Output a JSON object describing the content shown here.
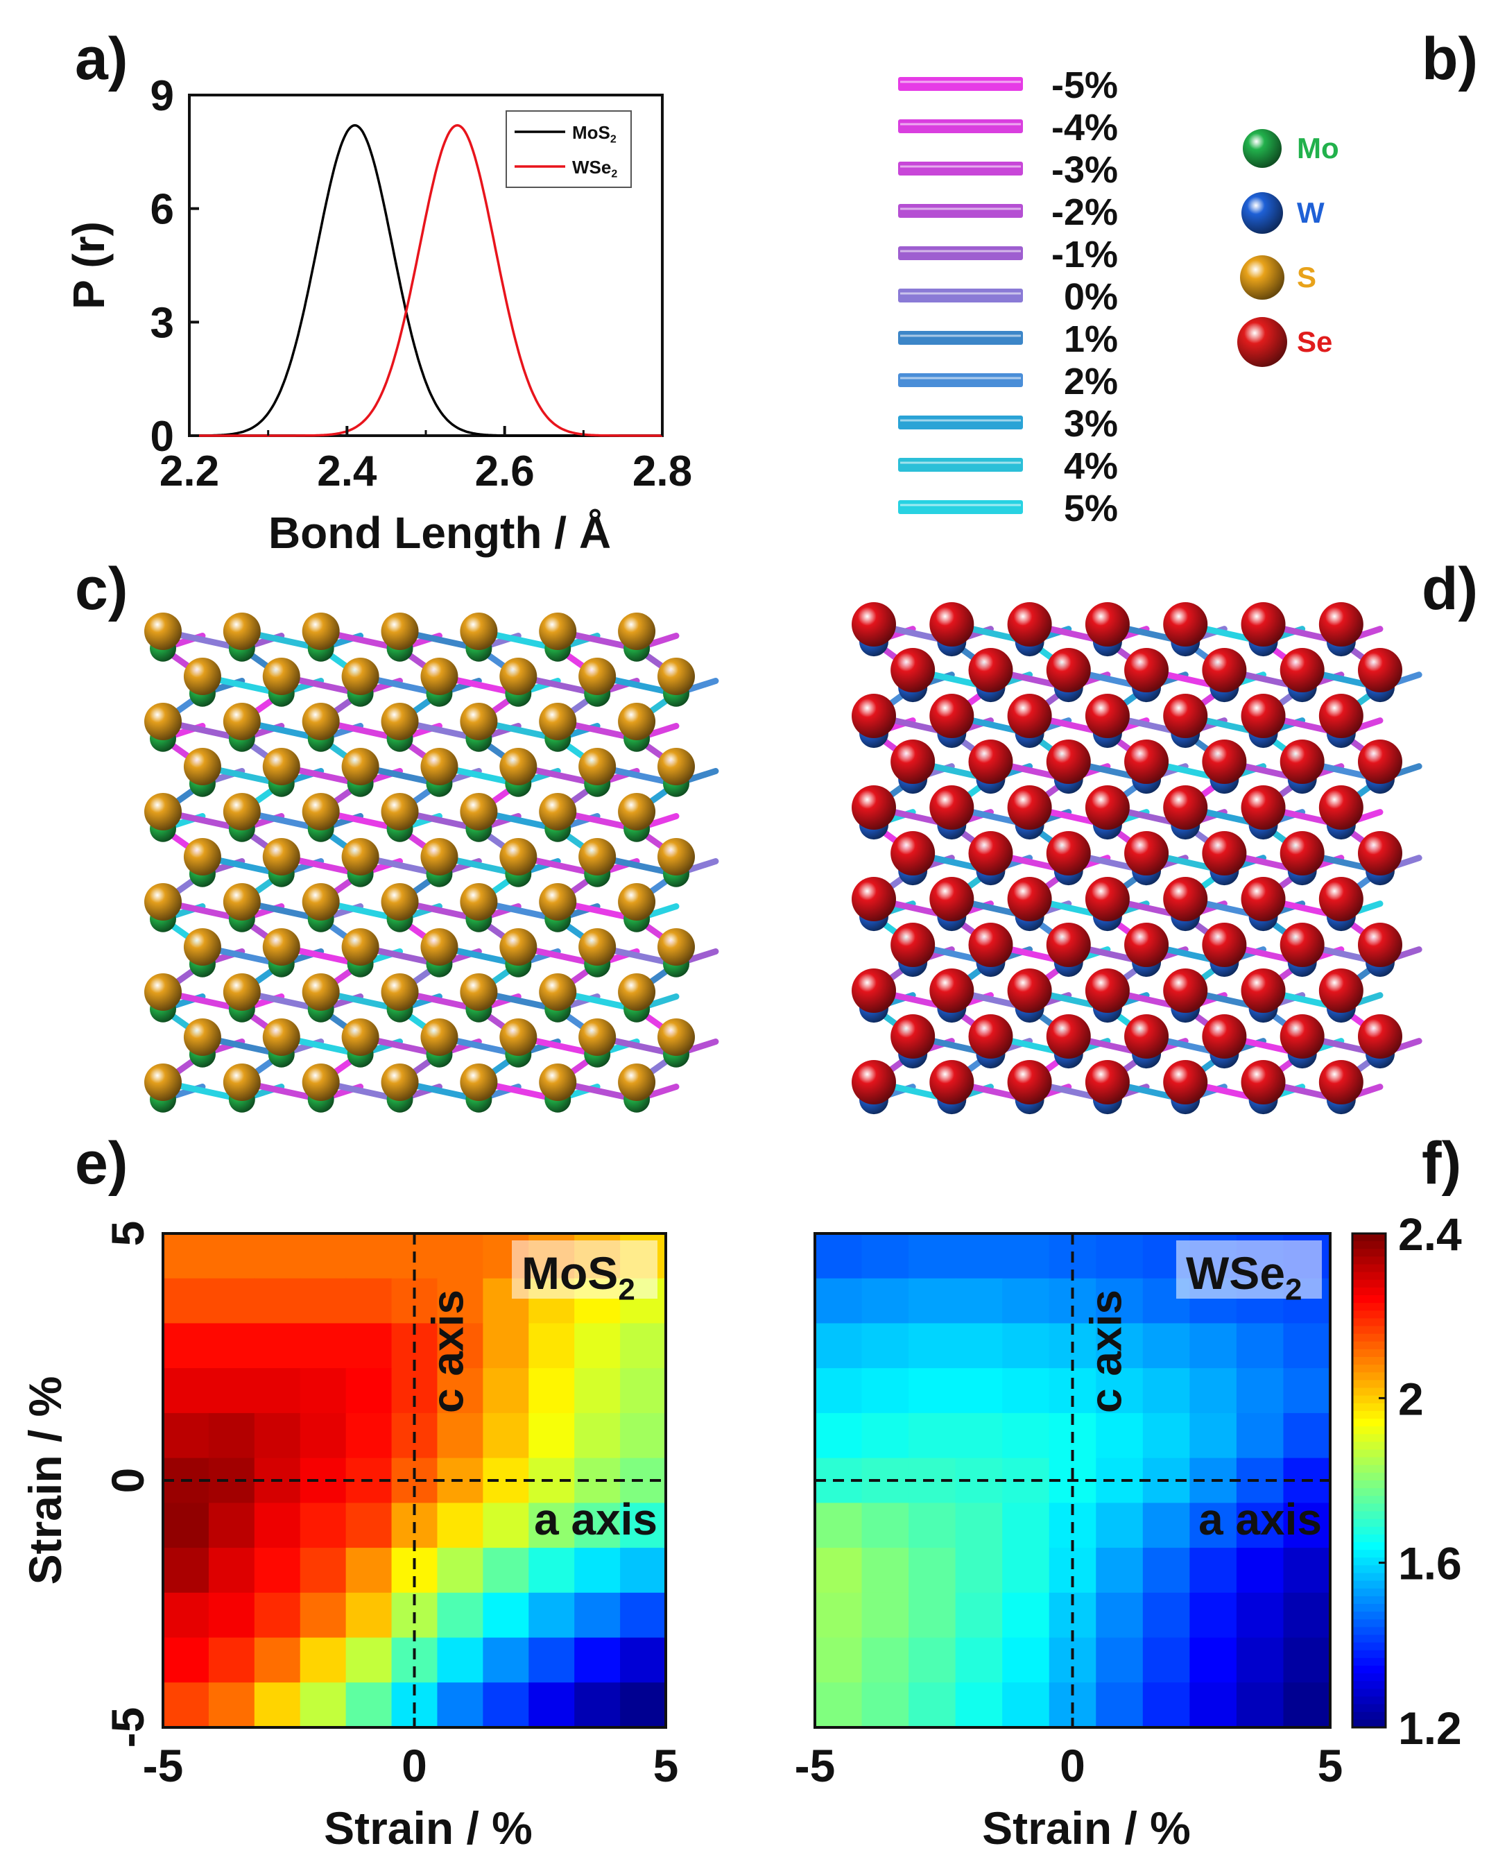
{
  "panel_labels": {
    "a": "a)",
    "b": "b)",
    "c": "c)",
    "d": "d)",
    "e": "e)",
    "f": "f)"
  },
  "chart_data": [
    {
      "type": "line",
      "panel": "a",
      "xlabel": "Bond Length / Å",
      "ylabel": "P (r)",
      "xlim": [
        2.2,
        2.8
      ],
      "ylim": [
        0,
        9
      ],
      "xticks": [
        "2.2",
        "2.4",
        "2.6",
        "2.8"
      ],
      "yticks": [
        "0",
        "3",
        "6",
        "9"
      ],
      "legend_position": "top-right",
      "series": [
        {
          "name": "MoS",
          "sub": "2",
          "color": "#000000",
          "mean": 2.41,
          "sigma": 0.048,
          "peak": 8.2,
          "x": [
            2.2,
            2.25,
            2.3,
            2.35,
            2.38,
            2.41,
            2.44,
            2.47,
            2.5,
            2.55,
            2.6,
            2.65,
            2.8
          ],
          "y": [
            0.0,
            0.03,
            0.6,
            3.7,
            6.8,
            8.2,
            6.8,
            3.7,
            1.4,
            0.12,
            0.0,
            0.0,
            0.0
          ]
        },
        {
          "name": "WSe",
          "sub": "2",
          "color": "#e8141c",
          "mean": 2.54,
          "sigma": 0.048,
          "peak": 8.2,
          "x": [
            2.2,
            2.35,
            2.4,
            2.45,
            2.48,
            2.51,
            2.54,
            2.57,
            2.6,
            2.65,
            2.7,
            2.75,
            2.8
          ],
          "y": [
            0.0,
            0.0,
            0.12,
            1.4,
            3.7,
            6.8,
            8.2,
            6.8,
            3.7,
            0.6,
            0.03,
            0.0,
            0.0
          ]
        }
      ]
    },
    {
      "type": "heatmap",
      "panel": "e",
      "title": "MoS",
      "title_sub": "2",
      "xlabel": "Strain / %",
      "ylabel": "Strain / %",
      "xlim": [
        -5,
        5
      ],
      "ylim": [
        -5,
        5
      ],
      "xticks": [
        "-5",
        "0",
        "5"
      ],
      "yticks": [
        "-5",
        "0",
        "5"
      ],
      "annotations": [
        "c axis",
        "a axis"
      ],
      "colormap": "jet",
      "zlim": [
        1.2,
        2.4
      ],
      "z_rows_top_to_bottom": [
        [
          2.12,
          2.12,
          2.12,
          2.12,
          2.12,
          2.12,
          2.12,
          2.11,
          2.08,
          2.04,
          2.0
        ],
        [
          2.16,
          2.16,
          2.16,
          2.16,
          2.16,
          2.14,
          2.12,
          2.06,
          2.0,
          1.96,
          1.92
        ],
        [
          2.24,
          2.24,
          2.24,
          2.24,
          2.24,
          2.2,
          2.14,
          2.06,
          1.98,
          1.92,
          1.88
        ],
        [
          2.28,
          2.28,
          2.28,
          2.27,
          2.25,
          2.2,
          2.12,
          2.04,
          1.96,
          1.9,
          1.86
        ],
        [
          2.33,
          2.34,
          2.31,
          2.28,
          2.24,
          2.18,
          2.1,
          2.02,
          1.94,
          1.88,
          1.84
        ],
        [
          2.37,
          2.36,
          2.3,
          2.26,
          2.22,
          2.14,
          2.06,
          1.98,
          1.9,
          1.84,
          1.8
        ],
        [
          2.38,
          2.33,
          2.27,
          2.22,
          2.18,
          2.06,
          1.98,
          1.9,
          1.82,
          1.76,
          1.7
        ],
        [
          2.35,
          2.29,
          2.24,
          2.18,
          2.08,
          1.96,
          1.86,
          1.76,
          1.68,
          1.62,
          1.58
        ],
        [
          2.28,
          2.26,
          2.2,
          2.12,
          2.02,
          1.86,
          1.74,
          1.64,
          1.56,
          1.5,
          1.44
        ],
        [
          2.25,
          2.2,
          2.12,
          2.0,
          1.88,
          1.74,
          1.62,
          1.52,
          1.44,
          1.36,
          1.3
        ],
        [
          2.17,
          2.12,
          2.0,
          1.88,
          1.76,
          1.62,
          1.5,
          1.42,
          1.33,
          1.26,
          1.22
        ]
      ]
    },
    {
      "type": "heatmap",
      "panel": "f",
      "title": "WSe",
      "title_sub": "2",
      "xlabel": "Strain / %",
      "xlim": [
        -5,
        5
      ],
      "ylim": [
        -5,
        5
      ],
      "xticks": [
        "-5",
        "0",
        "5"
      ],
      "annotations": [
        "c axis",
        "a axis"
      ],
      "colormap": "jet",
      "zlim": [
        1.2,
        2.4
      ],
      "colorbar_ticks": [
        "1.2",
        "1.6",
        "2",
        "2.4"
      ],
      "z_rows_top_to_bottom": [
        [
          1.46,
          1.47,
          1.48,
          1.48,
          1.48,
          1.47,
          1.46,
          1.45,
          1.44,
          1.43,
          1.42
        ],
        [
          1.52,
          1.53,
          1.54,
          1.54,
          1.53,
          1.52,
          1.5,
          1.48,
          1.46,
          1.45,
          1.44
        ],
        [
          1.58,
          1.59,
          1.6,
          1.6,
          1.59,
          1.58,
          1.56,
          1.54,
          1.52,
          1.49,
          1.46
        ],
        [
          1.62,
          1.63,
          1.64,
          1.64,
          1.63,
          1.62,
          1.6,
          1.58,
          1.55,
          1.51,
          1.48
        ],
        [
          1.66,
          1.67,
          1.68,
          1.68,
          1.67,
          1.66,
          1.63,
          1.6,
          1.56,
          1.5,
          1.44
        ],
        [
          1.7,
          1.71,
          1.71,
          1.7,
          1.69,
          1.66,
          1.62,
          1.58,
          1.52,
          1.45,
          1.38
        ],
        [
          1.8,
          1.77,
          1.74,
          1.72,
          1.68,
          1.63,
          1.58,
          1.52,
          1.46,
          1.4,
          1.34
        ],
        [
          1.84,
          1.8,
          1.76,
          1.72,
          1.68,
          1.62,
          1.54,
          1.47,
          1.4,
          1.34,
          1.29
        ],
        [
          1.83,
          1.8,
          1.76,
          1.71,
          1.66,
          1.59,
          1.51,
          1.44,
          1.37,
          1.31,
          1.26
        ],
        [
          1.82,
          1.78,
          1.74,
          1.69,
          1.64,
          1.57,
          1.49,
          1.42,
          1.35,
          1.29,
          1.24
        ],
        [
          1.8,
          1.77,
          1.72,
          1.67,
          1.62,
          1.55,
          1.47,
          1.4,
          1.33,
          1.27,
          1.22
        ]
      ]
    }
  ],
  "strain_legend": [
    {
      "label": "-5%",
      "color": "#e63be6"
    },
    {
      "label": "-4%",
      "color": "#d93fdf"
    },
    {
      "label": "-3%",
      "color": "#c846d8"
    },
    {
      "label": "-2%",
      "color": "#b54fd3"
    },
    {
      "label": "-1%",
      "color": "#9e5ed0"
    },
    {
      "label": "0%",
      "color": "#8a7ad6"
    },
    {
      "label": "1%",
      "color": "#3c86c8"
    },
    {
      "label": "2%",
      "color": "#4a8ed8"
    },
    {
      "label": "3%",
      "color": "#2aa3d6"
    },
    {
      "label": "4%",
      "color": "#2bbfd8"
    },
    {
      "label": "5%",
      "color": "#28d2e2"
    }
  ],
  "atom_legend": [
    {
      "label": "Mo",
      "color": "#22b14c"
    },
    {
      "label": "W",
      "color": "#1e60d6"
    },
    {
      "label": "S",
      "color": "#e8a21a"
    },
    {
      "label": "Se",
      "color": "#e01c1c"
    }
  ],
  "lattice_c": {
    "chalcogen": "S",
    "metal": "Mo",
    "chalcogen_color": "#e39e1c",
    "metal_color": "#21ad46"
  },
  "lattice_d": {
    "chalcogen": "Se",
    "metal": "W",
    "chalcogen_color": "#e3141c",
    "metal_color": "#2160d4"
  }
}
